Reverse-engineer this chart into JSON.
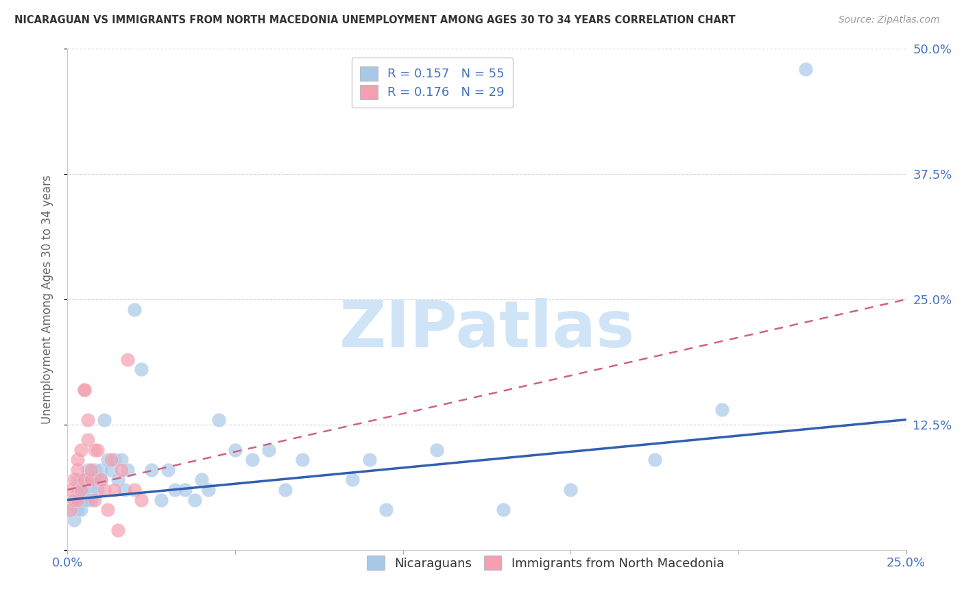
{
  "title": "NICARAGUAN VS IMMIGRANTS FROM NORTH MACEDONIA UNEMPLOYMENT AMONG AGES 30 TO 34 YEARS CORRELATION CHART",
  "source": "Source: ZipAtlas.com",
  "ylabel": "Unemployment Among Ages 30 to 34 years",
  "xlim": [
    0.0,
    0.25
  ],
  "ylim": [
    0.0,
    0.5
  ],
  "xticks": [
    0.0,
    0.05,
    0.1,
    0.15,
    0.2,
    0.25
  ],
  "yticks": [
    0.0,
    0.125,
    0.25,
    0.375,
    0.5
  ],
  "xticklabels": [
    "0.0%",
    "",
    "",
    "",
    "",
    "25.0%"
  ],
  "yticklabels": [
    "",
    "12.5%",
    "25.0%",
    "37.5%",
    "50.0%"
  ],
  "blue_R": 0.157,
  "blue_N": 55,
  "pink_R": 0.176,
  "pink_N": 29,
  "blue_color": "#a8c8e8",
  "pink_color": "#f4a0b0",
  "blue_line_color": "#3060b0",
  "pink_line_color": "#d06080",
  "watermark": "ZIPatlas",
  "watermark_color": "#d0e4f8",
  "legend_label_blue": "Nicaraguans",
  "legend_label_pink": "Immigrants from North Macedonia",
  "blue_scatter_x": [
    0.001,
    0.002,
    0.002,
    0.003,
    0.003,
    0.003,
    0.004,
    0.004,
    0.004,
    0.005,
    0.005,
    0.005,
    0.006,
    0.006,
    0.007,
    0.007,
    0.007,
    0.008,
    0.008,
    0.009,
    0.01,
    0.01,
    0.011,
    0.012,
    0.013,
    0.014,
    0.015,
    0.016,
    0.017,
    0.018,
    0.02,
    0.022,
    0.025,
    0.028,
    0.03,
    0.032,
    0.035,
    0.038,
    0.04,
    0.042,
    0.045,
    0.05,
    0.055,
    0.06,
    0.065,
    0.07,
    0.085,
    0.09,
    0.095,
    0.11,
    0.13,
    0.15,
    0.175,
    0.195,
    0.22
  ],
  "blue_scatter_y": [
    0.04,
    0.03,
    0.05,
    0.04,
    0.06,
    0.07,
    0.05,
    0.06,
    0.04,
    0.05,
    0.07,
    0.06,
    0.05,
    0.08,
    0.06,
    0.07,
    0.05,
    0.07,
    0.08,
    0.06,
    0.08,
    0.07,
    0.13,
    0.09,
    0.08,
    0.09,
    0.07,
    0.09,
    0.06,
    0.08,
    0.24,
    0.18,
    0.08,
    0.05,
    0.08,
    0.06,
    0.06,
    0.05,
    0.07,
    0.06,
    0.13,
    0.1,
    0.09,
    0.1,
    0.06,
    0.09,
    0.07,
    0.09,
    0.04,
    0.1,
    0.04,
    0.06,
    0.09,
    0.14,
    0.48
  ],
  "pink_scatter_x": [
    0.001,
    0.001,
    0.002,
    0.002,
    0.003,
    0.003,
    0.003,
    0.004,
    0.004,
    0.005,
    0.005,
    0.005,
    0.006,
    0.006,
    0.007,
    0.007,
    0.008,
    0.008,
    0.009,
    0.01,
    0.011,
    0.012,
    0.013,
    0.014,
    0.015,
    0.016,
    0.018,
    0.02,
    0.022
  ],
  "pink_scatter_y": [
    0.04,
    0.06,
    0.05,
    0.07,
    0.05,
    0.08,
    0.09,
    0.06,
    0.1,
    0.16,
    0.16,
    0.07,
    0.13,
    0.11,
    0.07,
    0.08,
    0.05,
    0.1,
    0.1,
    0.07,
    0.06,
    0.04,
    0.09,
    0.06,
    0.02,
    0.08,
    0.19,
    0.06,
    0.05
  ],
  "blue_trend_x": [
    0.0,
    0.25
  ],
  "blue_trend_y": [
    0.05,
    0.13
  ],
  "pink_trend_x": [
    0.0,
    0.022
  ],
  "pink_trend_y": [
    0.06,
    0.115
  ]
}
